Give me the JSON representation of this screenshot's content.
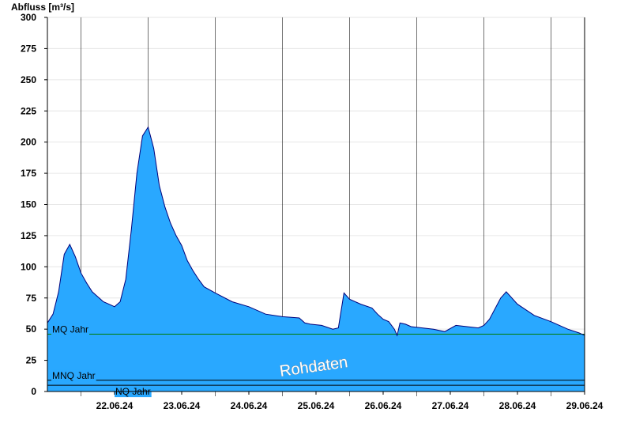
{
  "chart_data": {
    "type": "area",
    "ylabel": "Abfluss [m³/s]",
    "ylim": [
      0,
      300
    ],
    "yticks": [
      0,
      25,
      50,
      75,
      100,
      125,
      150,
      175,
      200,
      225,
      250,
      275,
      300
    ],
    "xlim": [
      "2024-06-21T12:00",
      "2024-06-29T12:00"
    ],
    "xtick_labels": [
      "22.06.24",
      "23.06.24",
      "24.06.24",
      "25.06.24",
      "26.06.24",
      "27.06.24",
      "28.06.24",
      "29.06.24"
    ],
    "grid": true,
    "colors": {
      "area": "#29a8ff",
      "outline": "#00007a",
      "mq_line": "#007a00",
      "low_lines": "#000000",
      "grid": "#e6e6e6"
    },
    "series": [
      {
        "x": [
          "2024-06-21T12:00",
          "2024-06-21T14:00",
          "2024-06-21T16:00",
          "2024-06-21T18:00",
          "2024-06-21T20:00",
          "2024-06-21T22:00",
          "2024-06-22T00:00",
          "2024-06-22T02:00",
          "2024-06-22T04:00",
          "2024-06-22T06:00",
          "2024-06-22T08:00",
          "2024-06-22T10:00",
          "2024-06-22T12:00",
          "2024-06-22T14:00",
          "2024-06-22T16:00",
          "2024-06-22T18:00",
          "2024-06-22T20:00",
          "2024-06-22T22:00",
          "2024-06-23T00:00",
          "2024-06-23T02:00",
          "2024-06-23T04:00",
          "2024-06-23T06:00",
          "2024-06-23T08:00",
          "2024-06-23T10:00",
          "2024-06-23T12:00",
          "2024-06-23T14:00",
          "2024-06-23T16:00",
          "2024-06-23T18:00",
          "2024-06-23T20:00",
          "2024-06-24T00:00",
          "2024-06-24T06:00",
          "2024-06-24T12:00",
          "2024-06-24T18:00",
          "2024-06-25T00:00",
          "2024-06-25T06:00",
          "2024-06-25T08:00",
          "2024-06-25T10:00",
          "2024-06-25T14:00",
          "2024-06-25T18:00",
          "2024-06-25T20:00",
          "2024-06-25T22:00",
          "2024-06-26T00:00",
          "2024-06-26T04:00",
          "2024-06-26T08:00",
          "2024-06-26T10:00",
          "2024-06-26T12:00",
          "2024-06-26T14:00",
          "2024-06-26T16:00",
          "2024-06-26T17:00",
          "2024-06-26T18:00",
          "2024-06-26T20:00",
          "2024-06-26T22:00",
          "2024-06-27T02:00",
          "2024-06-27T06:00",
          "2024-06-27T10:00",
          "2024-06-27T14:00",
          "2024-06-27T18:00",
          "2024-06-27T22:00",
          "2024-06-28T00:00",
          "2024-06-28T02:00",
          "2024-06-28T06:00",
          "2024-06-28T08:00",
          "2024-06-28T12:00",
          "2024-06-28T18:00",
          "2024-06-29T00:00",
          "2024-06-29T06:00",
          "2024-06-29T10:00",
          "2024-06-29T12:00"
        ],
        "y": [
          55,
          62,
          80,
          110,
          118,
          108,
          95,
          87,
          80,
          76,
          72,
          70,
          68,
          72,
          90,
          130,
          175,
          205,
          212,
          195,
          165,
          148,
          135,
          125,
          117,
          105,
          97,
          90,
          84,
          79,
          72,
          68,
          62,
          60,
          59,
          55,
          54,
          53,
          50,
          51,
          79,
          74,
          70,
          67,
          62,
          58,
          56,
          50,
          45,
          55,
          54,
          52,
          51,
          50,
          48,
          53,
          52,
          51,
          53,
          58,
          75,
          80,
          70,
          61,
          56,
          50,
          47,
          45
        ]
      }
    ],
    "reference_lines": [
      {
        "name": "MQ Jahr",
        "value": 46
      },
      {
        "name": "MNQ Jahr",
        "value": 9
      },
      {
        "name": "NQ Jahr",
        "value": 5
      }
    ],
    "annotations": [
      "Rohdaten"
    ]
  }
}
